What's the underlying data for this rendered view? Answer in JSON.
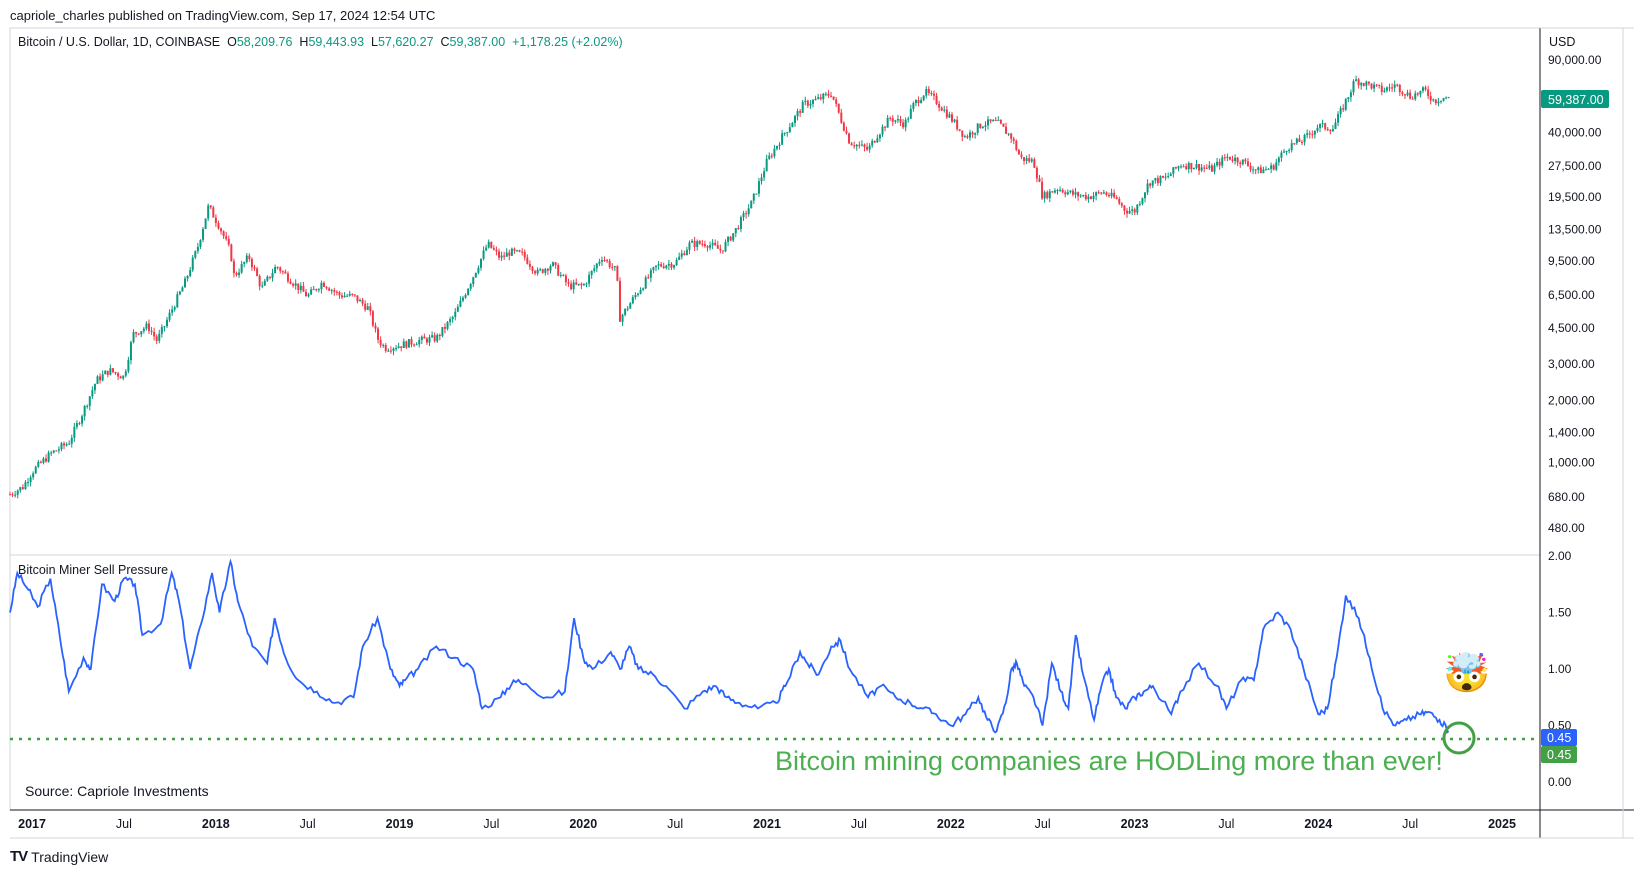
{
  "header": {
    "published_text": "capriole_charles published on TradingView.com, Sep 17, 2024 12:54 UTC"
  },
  "price_pane": {
    "symbol": "Bitcoin / U.S. Dollar, 1D, COINBASE",
    "open_label": "O",
    "open": "58,209.76",
    "high_label": "H",
    "high": "59,443.93",
    "low_label": "L",
    "low": "57,620.27",
    "close_label": "C",
    "close": "59,387.00",
    "change": "+1,178.25 (+2.02%)",
    "currency": "USD",
    "last_price_badge": "59,387.00"
  },
  "indicator_pane": {
    "title": "Bitcoin Miner Sell Pressure",
    "last_value_badge": "0.45",
    "reference_badge": "0.45",
    "source_note": "Source: Capriole Investments",
    "annotation": "Bitcoin mining companies are HODLing more than ever!",
    "emoji": "🤯"
  },
  "footer": {
    "logo_mark": "TV",
    "logo_text": "TradingView"
  },
  "colors": {
    "up": "#089981",
    "down": "#f23645",
    "miner_line": "#2962ff",
    "annotation": "#4caf50",
    "badge_blue": "#2962ff",
    "badge_green": "#43a047"
  },
  "chart_data": [
    {
      "type": "candlestick",
      "title": "Bitcoin / U.S. Dollar, 1D, COINBASE",
      "y_scale": "log",
      "y_tick_labels": [
        "90,000.00",
        "40,000.00",
        "27,500.00",
        "19,500.00",
        "13,500.00",
        "9,500.00",
        "6,500.00",
        "4,500.00",
        "3,000.00",
        "2,000.00",
        "1,400.00",
        "1,000.00",
        "680.00",
        "480.00"
      ],
      "y_ticks": [
        90000,
        40000,
        27500,
        19500,
        13500,
        9500,
        6500,
        4500,
        3000,
        2000,
        1400,
        1000,
        680,
        480
      ],
      "x_tick_labels": [
        "2017",
        "Jul",
        "2018",
        "Jul",
        "2019",
        "Jul",
        "2020",
        "Jul",
        "2021",
        "Jul",
        "2022",
        "Jul",
        "2023",
        "Jul",
        "2024",
        "Jul",
        "2025"
      ],
      "x_tick_years": [
        2017,
        2017.5,
        2018,
        2018.5,
        2019,
        2019.5,
        2020,
        2020.5,
        2021,
        2021.5,
        2022,
        2022.5,
        2023,
        2023.5,
        2024,
        2024.5,
        2025
      ],
      "series": [
        {
          "x": [
            2016.88,
            2016.95,
            2017.0,
            2017.1,
            2017.2,
            2017.27,
            2017.35,
            2017.42,
            2017.5,
            2017.55,
            2017.63,
            2017.68,
            2017.72,
            2017.78,
            2017.83,
            2017.9,
            2017.96,
            2018.02,
            2018.08,
            2018.1,
            2018.18,
            2018.25,
            2018.33,
            2018.42,
            2018.5,
            2018.58,
            2018.67,
            2018.75,
            2018.83,
            2018.88,
            2018.92,
            2019.0,
            2019.1,
            2019.2,
            2019.3,
            2019.4,
            2019.48,
            2019.55,
            2019.6,
            2019.67,
            2019.75,
            2019.83,
            2019.92,
            2020.0,
            2020.1,
            2020.18,
            2020.2,
            2020.3,
            2020.4,
            2020.5,
            2020.58,
            2020.67,
            2020.75,
            2020.83,
            2020.92,
            2021.0,
            2021.08,
            2021.15,
            2021.2,
            2021.28,
            2021.35,
            2021.4,
            2021.45,
            2021.55,
            2021.6,
            2021.67,
            2021.75,
            2021.8,
            2021.86,
            2021.92,
            2022.0,
            2022.08,
            2022.17,
            2022.25,
            2022.33,
            2022.38,
            2022.45,
            2022.5,
            2022.58,
            2022.67,
            2022.75,
            2022.83,
            2022.9,
            2022.95,
            2023.0,
            2023.08,
            2023.17,
            2023.25,
            2023.33,
            2023.42,
            2023.5,
            2023.58,
            2023.67,
            2023.75,
            2023.83,
            2023.92,
            2024.0,
            2024.08,
            2024.17,
            2024.2,
            2024.28,
            2024.35,
            2024.42,
            2024.5,
            2024.58,
            2024.63,
            2024.67,
            2024.71
          ],
          "y": [
            700,
            760,
            900,
            1100,
            1250,
            1700,
            2500,
            2800,
            2600,
            4200,
            4600,
            3900,
            4600,
            6000,
            7400,
            11000,
            17500,
            14000,
            10500,
            8000,
            10000,
            7000,
            9000,
            7500,
            6400,
            7500,
            6500,
            6400,
            5600,
            4000,
            3600,
            3700,
            3900,
            4000,
            5200,
            8000,
            11500,
            9800,
            10500,
            10200,
            8300,
            9200,
            7200,
            7200,
            10000,
            8500,
            5000,
            6800,
            9000,
            9300,
            11500,
            11600,
            10700,
            13500,
            18500,
            29000,
            38000,
            47000,
            55000,
            58000,
            62000,
            47000,
            36000,
            33000,
            39000,
            47000,
            44000,
            55000,
            63000,
            57000,
            47000,
            38000,
            44000,
            45000,
            38000,
            30000,
            29000,
            19500,
            21500,
            20000,
            19500,
            20500,
            19000,
            16800,
            16600,
            23000,
            24000,
            28000,
            27500,
            26500,
            30500,
            29200,
            26000,
            27000,
            34000,
            37000,
            43000,
            42000,
            62000,
            72000,
            68000,
            64000,
            68000,
            60000,
            64000,
            57000,
            59000,
            59387
          ]
        }
      ]
    },
    {
      "type": "line",
      "title": "Bitcoin Miner Sell Pressure",
      "y_tick_labels": [
        "2.00",
        "1.50",
        "1.00",
        "0.50",
        "0.00"
      ],
      "y_ticks": [
        2.0,
        1.5,
        1.0,
        0.5,
        0.0
      ],
      "reference_line": 0.45,
      "series": [
        {
          "name": "Bitcoin Miner Sell Pressure",
          "x": [
            2016.88,
            2016.92,
            2016.98,
            2017.03,
            2017.1,
            2017.15,
            2017.2,
            2017.28,
            2017.32,
            2017.38,
            2017.45,
            2017.5,
            2017.56,
            2017.6,
            2017.7,
            2017.76,
            2017.8,
            2017.86,
            2017.92,
            2017.98,
            2018.02,
            2018.08,
            2018.12,
            2018.2,
            2018.28,
            2018.32,
            2018.38,
            2018.45,
            2018.55,
            2018.65,
            2018.75,
            2018.8,
            2018.88,
            2018.95,
            2019.0,
            2019.03,
            2019.1,
            2019.2,
            2019.3,
            2019.4,
            2019.45,
            2019.55,
            2019.62,
            2019.7,
            2019.8,
            2019.9,
            2019.95,
            2020.0,
            2020.05,
            2020.15,
            2020.2,
            2020.25,
            2020.3,
            2020.38,
            2020.45,
            2020.55,
            2020.65,
            2020.72,
            2020.78,
            2020.85,
            2020.95,
            2021.05,
            2021.1,
            2021.18,
            2021.22,
            2021.28,
            2021.35,
            2021.4,
            2021.45,
            2021.55,
            2021.62,
            2021.7,
            2021.78,
            2021.85,
            2021.92,
            2022.0,
            2022.08,
            2022.15,
            2022.2,
            2022.25,
            2022.3,
            2022.33,
            2022.36,
            2022.4,
            2022.45,
            2022.5,
            2022.55,
            2022.6,
            2022.64,
            2022.68,
            2022.72,
            2022.78,
            2022.82,
            2022.86,
            2022.9,
            2022.95,
            2023.0,
            2023.05,
            2023.1,
            2023.2,
            2023.25,
            2023.35,
            2023.45,
            2023.5,
            2023.58,
            2023.65,
            2023.7,
            2023.78,
            2023.85,
            2023.92,
            2024.0,
            2024.05,
            2024.1,
            2024.15,
            2024.22,
            2024.28,
            2024.35,
            2024.42,
            2024.48,
            2024.55,
            2024.6,
            2024.66,
            2024.71
          ],
          "y": [
            1.5,
            1.85,
            1.7,
            1.55,
            1.8,
            1.3,
            0.8,
            1.1,
            1.0,
            1.75,
            1.6,
            1.8,
            1.75,
            1.3,
            1.4,
            1.85,
            1.6,
            1.0,
            1.4,
            1.85,
            1.5,
            1.95,
            1.6,
            1.2,
            1.05,
            1.45,
            1.1,
            0.9,
            0.8,
            0.7,
            0.75,
            1.2,
            1.45,
            1.0,
            0.85,
            0.9,
            1.0,
            1.2,
            1.1,
            1.0,
            0.65,
            0.75,
            0.9,
            0.85,
            0.75,
            0.8,
            1.45,
            1.1,
            1.0,
            1.15,
            1.0,
            1.2,
            1.0,
            0.95,
            0.85,
            0.65,
            0.8,
            0.85,
            0.75,
            0.7,
            0.65,
            0.7,
            0.85,
            1.15,
            1.05,
            0.95,
            1.2,
            1.25,
            1.0,
            0.75,
            0.85,
            0.75,
            0.7,
            0.65,
            0.6,
            0.5,
            0.6,
            0.75,
            0.55,
            0.45,
            0.7,
            1.0,
            1.05,
            0.85,
            0.75,
            0.5,
            1.05,
            0.8,
            0.65,
            1.3,
            0.95,
            0.55,
            0.85,
            1.0,
            0.75,
            0.65,
            0.75,
            0.8,
            0.85,
            0.6,
            0.8,
            1.05,
            0.85,
            0.65,
            0.9,
            0.9,
            1.35,
            1.5,
            1.35,
            1.0,
            0.6,
            0.65,
            1.1,
            1.65,
            1.45,
            1.1,
            0.65,
            0.5,
            0.55,
            0.6,
            0.62,
            0.55,
            0.45
          ]
        }
      ]
    }
  ]
}
